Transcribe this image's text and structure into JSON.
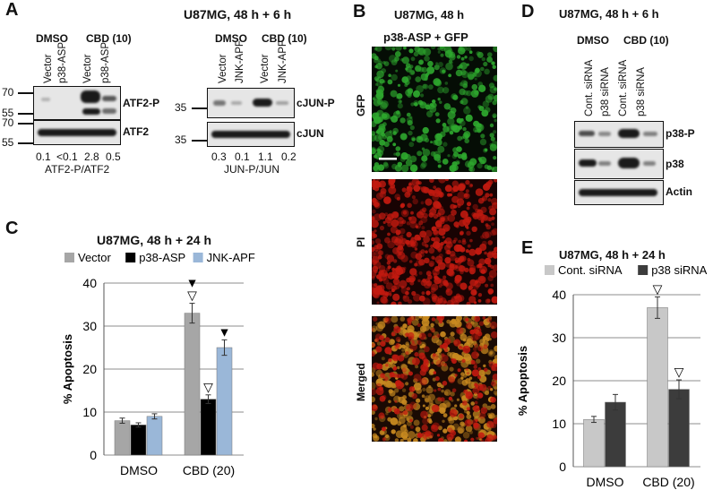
{
  "panel_a": {
    "label": "A",
    "title": "U87MG, 48 h + 6 h",
    "left": {
      "groups": [
        "DMSO",
        "CBD (10)"
      ],
      "lanes": [
        "Vector",
        "p38-ASP",
        "Vector",
        "p38-ASP"
      ],
      "mw_top": [
        "70",
        "55"
      ],
      "mw_bottom": [
        "70",
        "55"
      ],
      "blot_top": "ATF2-P",
      "blot_bottom": "ATF2",
      "ratios": [
        "0.1",
        "<0.1",
        "2.8",
        "0.5"
      ],
      "ratio_label": "ATF2-P/ATF2"
    },
    "right": {
      "groups": [
        "DMSO",
        "CBD (10)"
      ],
      "lanes": [
        "Vector",
        "JNK-APF",
        "Vector",
        "JNK-APF"
      ],
      "mw_top": "35",
      "mw_bottom": "35",
      "blot_top": "cJUN-P",
      "blot_bottom": "cJUN",
      "ratios": [
        "0.3",
        "0.1",
        "1.1",
        "0.2"
      ],
      "ratio_label": "JUN-P/JUN"
    }
  },
  "panel_b": {
    "label": "B",
    "title": "U87MG, 48 h",
    "subtitle": "p38-ASP + GFP",
    "rows": [
      "GFP",
      "PI",
      "Merged"
    ],
    "colors": {
      "gfp": "#2ea82e",
      "pi": "#c21a10",
      "merged": "#c98a20"
    }
  },
  "panel_d": {
    "label": "D",
    "title": "U87MG, 48 h + 6 h",
    "groups": [
      "DMSO",
      "CBD (10)"
    ],
    "lanes": [
      "Cont. siRNA",
      "p38 siRNA",
      "Cont. siRNA",
      "p38 siRNA"
    ],
    "blots": [
      "p38-P",
      "p38",
      "Actin"
    ]
  },
  "panel_c": {
    "label": "C",
    "title": "U87MG, 48 h + 24 h",
    "markers": [
      "▼▽",
      "▽",
      "▼"
    ]
  },
  "panel_e": {
    "label": "E",
    "title": "U87MG, 48 h + 24 h",
    "markers": [
      "▽",
      "▽"
    ]
  },
  "chart_data": [
    {
      "type": "bar",
      "categories": [
        "DMSO",
        "CBD (20)"
      ],
      "series": [
        {
          "name": "Vector",
          "values": [
            8,
            33
          ],
          "errors": [
            0.6,
            2.3
          ],
          "color": "#a6a6a6"
        },
        {
          "name": "p38-ASP",
          "values": [
            7,
            13
          ],
          "errors": [
            0.5,
            1.0
          ],
          "color": "#000000"
        },
        {
          "name": "JNK-APF",
          "values": [
            9,
            25
          ],
          "errors": [
            0.6,
            1.8
          ],
          "color": "#9ab7d8"
        }
      ],
      "ylabel": "% Apoptosis",
      "ylim": [
        0,
        40
      ],
      "yticks": [
        0,
        10,
        20,
        30,
        40
      ],
      "grid": true,
      "legend": "top"
    },
    {
      "type": "bar",
      "categories": [
        "DMSO",
        "CBD (20)"
      ],
      "series": [
        {
          "name": "Cont. siRNA",
          "values": [
            11,
            37
          ],
          "errors": [
            0.7,
            2.5
          ],
          "color": "#c8c8c8"
        },
        {
          "name": "p38 siRNA",
          "values": [
            15,
            18
          ],
          "errors": [
            1.8,
            2.2
          ],
          "color": "#3c3c3c"
        }
      ],
      "ylabel": "% Apoptosis",
      "ylim": [
        0,
        40
      ],
      "yticks": [
        0,
        10,
        20,
        30,
        40
      ],
      "grid": true,
      "legend": "top"
    }
  ]
}
